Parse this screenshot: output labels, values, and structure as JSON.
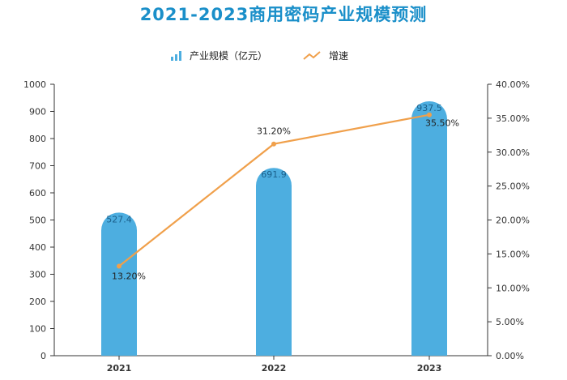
{
  "title": "2021-2023商用密码产业规模预测",
  "legend": {
    "bar_label": "产业规模（亿元）",
    "line_label": "增速"
  },
  "colors": {
    "bar": "#4daee0",
    "line": "#f0a04b",
    "title": "#1a8fc9"
  },
  "chart_data": {
    "type": "bar",
    "title": "2021-2023商用密码产业规模预测",
    "categories": [
      "2021",
      "2022",
      "2023"
    ],
    "series": [
      {
        "name": "产业规模（亿元）",
        "type": "bar",
        "axis": "left",
        "values": [
          527.4,
          691.9,
          937.5
        ],
        "labels": [
          "527.4",
          "691.9",
          "937.5"
        ]
      },
      {
        "name": "增速",
        "type": "line",
        "axis": "right",
        "values": [
          13.2,
          31.2,
          35.5
        ],
        "labels": [
          "13.20%",
          "31.20%",
          "35.50%"
        ]
      }
    ],
    "y_left": {
      "min": 0,
      "max": 1000,
      "step": 100,
      "ticks": [
        "0",
        "100",
        "200",
        "300",
        "400",
        "500",
        "600",
        "700",
        "800",
        "900",
        "1000"
      ]
    },
    "y_right": {
      "min": 0,
      "max": 40,
      "step": 5,
      "ticks": [
        "0.00%",
        "5.00%",
        "10.00%",
        "15.00%",
        "20.00%",
        "25.00%",
        "30.00%",
        "35.00%",
        "40.00%"
      ]
    },
    "legend_position": "top-center",
    "grid": false
  }
}
